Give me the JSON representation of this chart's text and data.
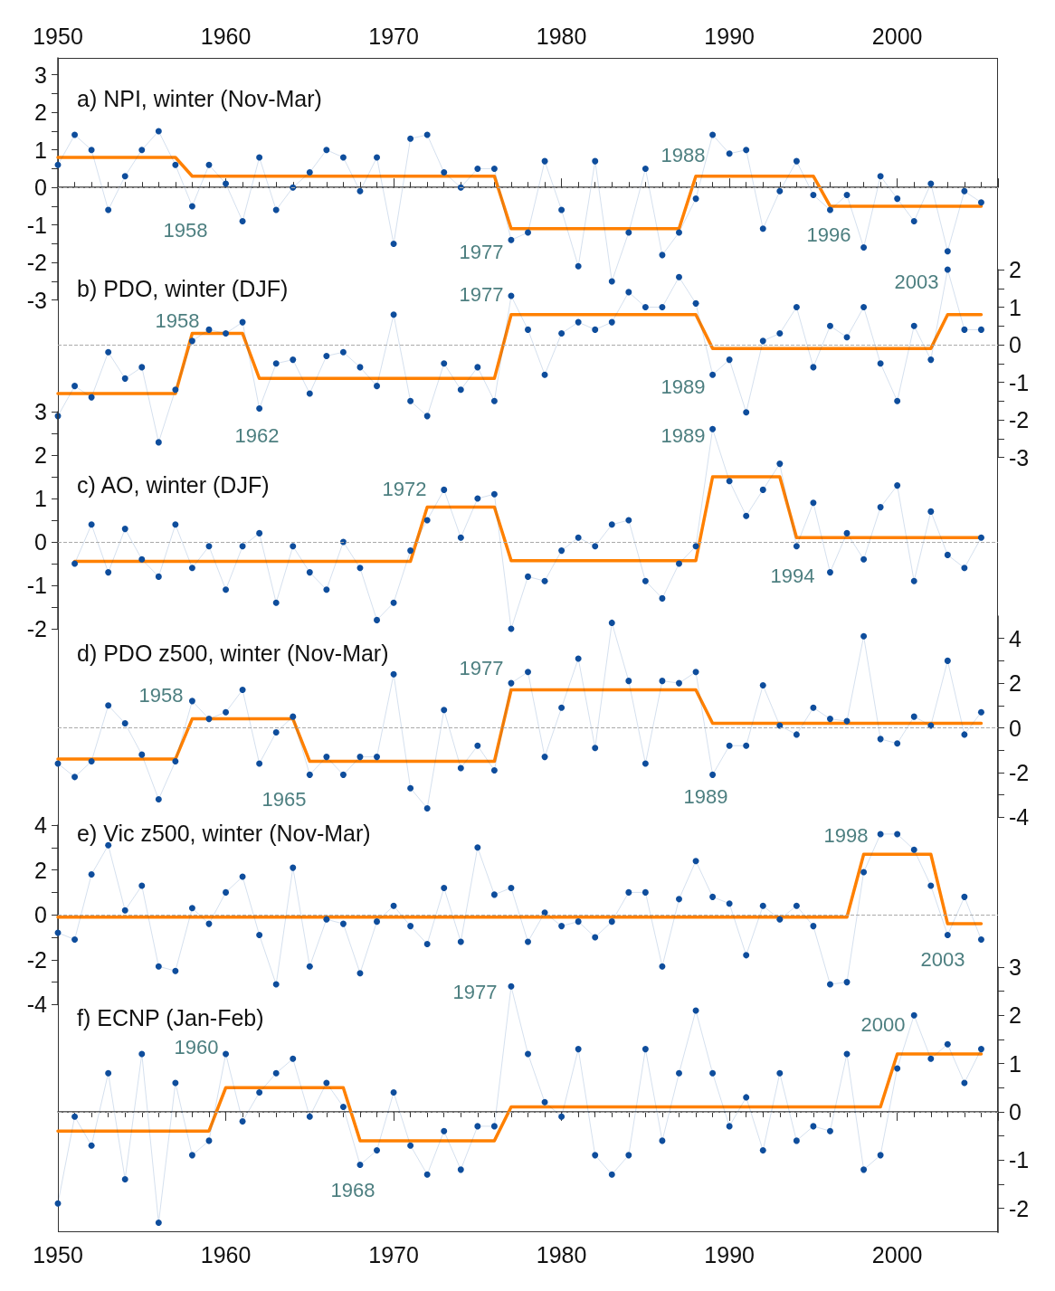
{
  "chart_data": [
    {
      "type": "line",
      "title": "a) NPI, winter (Nov-Mar)",
      "marker": "circle",
      "xlim": [
        1950,
        2006
      ],
      "xticks": [
        1950,
        1960,
        1970,
        1980,
        1990,
        2000
      ],
      "ylim": [
        -3,
        3.45
      ],
      "yticks": [
        -3,
        -2,
        -1,
        0,
        1,
        2,
        3
      ],
      "x": [
        1950,
        1951,
        1952,
        1953,
        1954,
        1955,
        1956,
        1957,
        1958,
        1959,
        1960,
        1961,
        1962,
        1963,
        1964,
        1965,
        1966,
        1967,
        1968,
        1969,
        1970,
        1971,
        1972,
        1973,
        1974,
        1975,
        1976,
        1977,
        1978,
        1979,
        1980,
        1981,
        1982,
        1983,
        1984,
        1985,
        1986,
        1987,
        1988,
        1989,
        1990,
        1991,
        1992,
        1993,
        1994,
        1995,
        1996,
        1997,
        1998,
        1999,
        2000,
        2001,
        2002,
        2003,
        2004,
        2005
      ],
      "series": [
        {
          "color": "#0e4d9c",
          "values": [
            0.6,
            1.4,
            1.0,
            -0.6,
            0.3,
            1.0,
            1.5,
            0.6,
            -0.5,
            0.6,
            0.1,
            -0.9,
            0.8,
            -0.6,
            0.0,
            0.4,
            1.0,
            0.8,
            -0.1,
            0.8,
            -1.5,
            1.3,
            1.4,
            0.4,
            0.0,
            0.5,
            0.5,
            -1.4,
            -1.2,
            0.7,
            -0.6,
            -2.1,
            0.7,
            -2.5,
            -1.2,
            0.5,
            -1.8,
            -1.2,
            -0.3,
            1.4,
            0.9,
            1.0,
            -1.1,
            -0.1,
            0.7,
            -0.2,
            -0.6,
            -0.2,
            -1.6,
            0.3,
            -0.3,
            -0.9,
            0.1,
            -1.7,
            -0.1,
            -0.4
          ]
        },
        {
          "color": "#ff8000",
          "marker": "none",
          "x": [
            1950,
            1957,
            1958,
            1976,
            1977,
            1987,
            1988,
            1995,
            1996,
            2005
          ],
          "values": [
            0.8,
            0.8,
            0.3,
            0.3,
            -1.1,
            -1.1,
            0.3,
            0.3,
            -0.5,
            -0.5
          ]
        }
      ],
      "ref_lines": [
        {
          "axis": "y",
          "value": 0,
          "line_style": "dashed",
          "color": "#aaaaaa"
        }
      ],
      "annotations": [
        "1958",
        "1977",
        "1988",
        "1996"
      ]
    },
    {
      "type": "line",
      "title": "b) PDO, winter (DJF)",
      "marker": "circle",
      "tick_labels": "y",
      "xlim": [
        1950,
        2006
      ],
      "ylim": [
        -3,
        2
      ],
      "yticks": [
        -3,
        -2,
        -1,
        0,
        1,
        2
      ],
      "x": [
        1950,
        1951,
        1952,
        1953,
        1954,
        1955,
        1956,
        1957,
        1958,
        1959,
        1960,
        1961,
        1962,
        1963,
        1964,
        1965,
        1966,
        1967,
        1968,
        1969,
        1970,
        1971,
        1972,
        1973,
        1974,
        1975,
        1976,
        1977,
        1978,
        1979,
        1980,
        1981,
        1982,
        1983,
        1984,
        1985,
        1986,
        1987,
        1988,
        1989,
        1990,
        1991,
        1992,
        1993,
        1994,
        1995,
        1996,
        1997,
        1998,
        1999,
        2000,
        2001,
        2002,
        2003,
        2004,
        2005
      ],
      "series": [
        {
          "color": "#0e4d9c",
          "values": [
            -1.9,
            -1.1,
            -1.4,
            -0.2,
            -0.9,
            -0.6,
            -2.6,
            -1.2,
            0.1,
            0.4,
            0.3,
            0.6,
            -1.7,
            -0.5,
            -0.4,
            -1.3,
            -0.3,
            -0.2,
            -0.6,
            -1.1,
            0.8,
            -1.5,
            -1.9,
            -0.5,
            -1.2,
            -0.6,
            -1.5,
            1.3,
            0.4,
            -0.8,
            0.3,
            0.6,
            0.4,
            0.6,
            1.4,
            1.0,
            1.0,
            1.8,
            1.1,
            -0.8,
            -0.4,
            -1.8,
            0.1,
            0.3,
            1.0,
            -0.6,
            0.5,
            0.2,
            1.0,
            -0.5,
            -1.5,
            0.5,
            -0.4,
            2.0,
            0.4,
            0.4
          ]
        },
        {
          "color": "#ff8000",
          "marker": "none",
          "x": [
            1950,
            1957,
            1958,
            1961,
            1962,
            1976,
            1977,
            1988,
            1989,
            2002,
            2003,
            2005
          ],
          "values": [
            -1.3,
            -1.3,
            0.3,
            0.3,
            -0.9,
            -0.9,
            0.8,
            0.8,
            -0.1,
            -0.1,
            0.8,
            0.8
          ]
        }
      ],
      "ref_lines": [
        {
          "axis": "y",
          "value": 0,
          "line_style": "dashed",
          "color": "#aaaaaa"
        }
      ],
      "annotations": [
        "1958",
        "1962",
        "1977",
        "1989",
        "2003"
      ]
    },
    {
      "type": "line",
      "title": "c) AO, winter (DJF)",
      "marker": "circle",
      "tick_labels": "y",
      "xlim": [
        1950,
        2006
      ],
      "ylim": [
        -2,
        3
      ],
      "yticks": [
        -2,
        -1,
        0,
        1,
        2,
        3
      ],
      "x": [
        1951,
        1952,
        1953,
        1954,
        1955,
        1956,
        1957,
        1958,
        1959,
        1960,
        1961,
        1962,
        1963,
        1964,
        1965,
        1966,
        1967,
        1968,
        1969,
        1970,
        1971,
        1972,
        1973,
        1974,
        1975,
        1976,
        1977,
        1978,
        1979,
        1980,
        1981,
        1982,
        1983,
        1984,
        1985,
        1986,
        1987,
        1988,
        1989,
        1990,
        1991,
        1992,
        1993,
        1994,
        1995,
        1996,
        1997,
        1998,
        1999,
        2000,
        2001,
        2002,
        2003,
        2004,
        2005
      ],
      "series": [
        {
          "color": "#0e4d9c",
          "values": [
            -0.5,
            0.4,
            -0.7,
            0.3,
            -0.4,
            -0.8,
            0.4,
            -0.6,
            -0.1,
            -1.1,
            -0.1,
            0.2,
            -1.4,
            -0.1,
            -0.7,
            -1.1,
            0.0,
            -0.6,
            -1.8,
            -1.4,
            -0.2,
            0.5,
            1.2,
            0.1,
            1.0,
            1.1,
            -2.0,
            -0.8,
            -0.9,
            -0.2,
            0.1,
            -0.1,
            0.4,
            0.5,
            -0.9,
            -1.3,
            -0.5,
            -0.1,
            2.6,
            1.4,
            0.6,
            1.2,
            1.8,
            -0.1,
            0.9,
            -0.7,
            0.2,
            -0.4,
            0.8,
            1.3,
            -0.9,
            0.7,
            -0.3,
            -0.6,
            0.1
          ]
        },
        {
          "color": "#ff8000",
          "marker": "none",
          "x": [
            1951,
            1971,
            1972,
            1976,
            1977,
            1988,
            1989,
            1993,
            1994,
            2005
          ],
          "values": [
            -0.45,
            -0.45,
            0.8,
            0.8,
            -0.43,
            -0.43,
            1.5,
            1.5,
            0.1,
            0.1
          ]
        }
      ],
      "ref_lines": [
        {
          "axis": "y",
          "value": 0,
          "line_style": "dashed",
          "color": "#aaaaaa"
        }
      ],
      "annotations": [
        "1972",
        "1989",
        "1994"
      ]
    },
    {
      "type": "line",
      "title": "d) PDO z500, winter (Nov-Mar)",
      "marker": "circle",
      "tick_labels": "y",
      "xlim": [
        1950,
        2006
      ],
      "ylim": [
        -4,
        5
      ],
      "yticks": [
        -4,
        -2,
        0,
        2,
        4
      ],
      "x": [
        1950,
        1951,
        1952,
        1953,
        1954,
        1955,
        1956,
        1957,
        1958,
        1959,
        1960,
        1961,
        1962,
        1963,
        1964,
        1965,
        1966,
        1967,
        1968,
        1969,
        1970,
        1971,
        1972,
        1973,
        1974,
        1975,
        1976,
        1977,
        1978,
        1979,
        1980,
        1981,
        1982,
        1983,
        1984,
        1985,
        1986,
        1987,
        1988,
        1989,
        1990,
        1991,
        1992,
        1993,
        1994,
        1995,
        1996,
        1997,
        1998,
        1999,
        2000,
        2001,
        2002,
        2003,
        2004,
        2005
      ],
      "series": [
        {
          "color": "#0e4d9c",
          "values": [
            -1.6,
            -2.2,
            -1.5,
            1.0,
            0.2,
            -1.2,
            -3.2,
            -1.5,
            1.2,
            0.4,
            0.7,
            1.7,
            -1.6,
            -0.2,
            0.5,
            -2.1,
            -1.3,
            -2.1,
            -1.3,
            -1.3,
            2.4,
            -2.7,
            -3.6,
            0.8,
            -1.8,
            -0.8,
            -1.9,
            2.0,
            2.5,
            -1.3,
            0.9,
            3.1,
            -0.9,
            4.7,
            2.1,
            -1.6,
            2.1,
            2.0,
            2.5,
            -2.1,
            -0.8,
            -0.8,
            1.9,
            0.1,
            -0.3,
            0.9,
            0.4,
            0.3,
            4.1,
            -0.5,
            -0.7,
            0.5,
            0.1,
            3.0,
            -0.3,
            0.7
          ]
        },
        {
          "color": "#ff8000",
          "marker": "none",
          "x": [
            1950,
            1957,
            1958,
            1964,
            1965,
            1976,
            1977,
            1988,
            1989,
            2005
          ],
          "values": [
            -1.4,
            -1.4,
            0.4,
            0.4,
            -1.5,
            -1.5,
            1.7,
            1.7,
            0.2,
            0.2
          ]
        }
      ],
      "ref_lines": [
        {
          "axis": "y",
          "value": 0,
          "line_style": "dashed",
          "color": "#aaaaaa"
        }
      ],
      "annotations": [
        "1958",
        "1965",
        "1977",
        "1989"
      ]
    },
    {
      "type": "line",
      "title": "e) Vic z500, winter (Nov-Mar)",
      "marker": "circle",
      "tick_labels": "y",
      "xlim": [
        1950,
        2006
      ],
      "ylim": [
        -4,
        4
      ],
      "yticks": [
        -4,
        -2,
        0,
        2,
        4
      ],
      "x": [
        1950,
        1951,
        1952,
        1953,
        1954,
        1955,
        1956,
        1957,
        1958,
        1959,
        1960,
        1961,
        1962,
        1963,
        1964,
        1965,
        1966,
        1967,
        1968,
        1969,
        1970,
        1971,
        1972,
        1973,
        1974,
        1975,
        1976,
        1977,
        1978,
        1979,
        1980,
        1981,
        1982,
        1983,
        1984,
        1985,
        1986,
        1987,
        1988,
        1989,
        1990,
        1991,
        1992,
        1993,
        1994,
        1995,
        1996,
        1997,
        1998,
        1999,
        2000,
        2001,
        2002,
        2003,
        2004,
        2005
      ],
      "series": [
        {
          "color": "#0e4d9c",
          "values": [
            -0.8,
            -1.1,
            1.8,
            3.1,
            0.2,
            1.3,
            -2.3,
            -2.5,
            0.3,
            -0.4,
            1.0,
            1.7,
            -0.9,
            -3.1,
            2.1,
            -2.3,
            -0.2,
            -0.4,
            -2.6,
            -0.3,
            0.4,
            -0.5,
            -1.3,
            1.2,
            -1.2,
            3.0,
            0.9,
            1.2,
            -1.2,
            0.1,
            -0.5,
            -0.3,
            -1.0,
            -0.3,
            1.0,
            1.0,
            -2.3,
            0.7,
            2.4,
            0.8,
            0.5,
            -1.8,
            0.4,
            -0.2,
            0.4,
            -0.5,
            -3.1,
            -3.0,
            1.9,
            3.6,
            3.6,
            2.9,
            1.3,
            -0.9,
            0.8,
            -1.1
          ]
        },
        {
          "color": "#ff8000",
          "marker": "none",
          "x": [
            1950,
            1997,
            1998,
            2002,
            2003,
            2005
          ],
          "values": [
            -0.1,
            -0.1,
            2.7,
            2.7,
            -0.4,
            -0.4
          ]
        }
      ],
      "ref_lines": [
        {
          "axis": "y",
          "value": 0,
          "line_style": "dashed",
          "color": "#aaaaaa"
        }
      ],
      "annotations": [
        "1998",
        "2003"
      ]
    },
    {
      "type": "line",
      "title": "f) ECNP (Jan-Feb)",
      "marker": "circle",
      "xlim": [
        1950,
        2006
      ],
      "xticks": [
        1950,
        1960,
        1970,
        1980,
        1990,
        2000
      ],
      "ylim": [
        -2.5,
        3
      ],
      "yticks": [
        -2,
        -1,
        0,
        1,
        2,
        3
      ],
      "x": [
        1950,
        1951,
        1952,
        1953,
        1954,
        1955,
        1956,
        1957,
        1958,
        1959,
        1960,
        1961,
        1962,
        1963,
        1964,
        1965,
        1966,
        1967,
        1968,
        1969,
        1970,
        1971,
        1972,
        1973,
        1974,
        1975,
        1976,
        1977,
        1978,
        1979,
        1980,
        1981,
        1982,
        1983,
        1984,
        1985,
        1986,
        1987,
        1988,
        1989,
        1990,
        1991,
        1992,
        1993,
        1994,
        1995,
        1996,
        1997,
        1998,
        1999,
        2000,
        2001,
        2002,
        2003,
        2004,
        2005
      ],
      "series": [
        {
          "color": "#0e4d9c",
          "values": [
            -1.9,
            -0.1,
            -0.7,
            0.8,
            -1.4,
            1.2,
            -2.3,
            0.6,
            -0.9,
            -0.6,
            1.2,
            -0.2,
            0.4,
            0.8,
            1.1,
            -0.1,
            0.6,
            0.1,
            -1.1,
            -0.8,
            0.4,
            -0.7,
            -1.3,
            -0.4,
            -1.2,
            -0.3,
            -0.3,
            2.6,
            1.2,
            0.2,
            -0.1,
            1.3,
            -0.9,
            -1.3,
            -0.9,
            1.3,
            -0.6,
            0.8,
            2.1,
            0.8,
            -0.3,
            0.3,
            -0.8,
            0.8,
            -0.6,
            -0.3,
            -0.4,
            1.2,
            -1.2,
            -0.9,
            0.9,
            2.0,
            1.1,
            1.4,
            0.6,
            1.3
          ]
        },
        {
          "color": "#ff8000",
          "marker": "none",
          "x": [
            1950,
            1959,
            1960,
            1967,
            1968,
            1976,
            1977,
            1999,
            2000,
            2005
          ],
          "values": [
            -0.4,
            -0.4,
            0.5,
            0.5,
            -0.6,
            -0.6,
            0.1,
            0.1,
            1.2,
            1.2
          ]
        }
      ],
      "ref_lines": [
        {
          "axis": "y",
          "value": 0,
          "line_style": "dashed",
          "color": "#aaaaaa"
        }
      ],
      "annotations": [
        "1960",
        "1968",
        "1977",
        "2000"
      ]
    }
  ]
}
